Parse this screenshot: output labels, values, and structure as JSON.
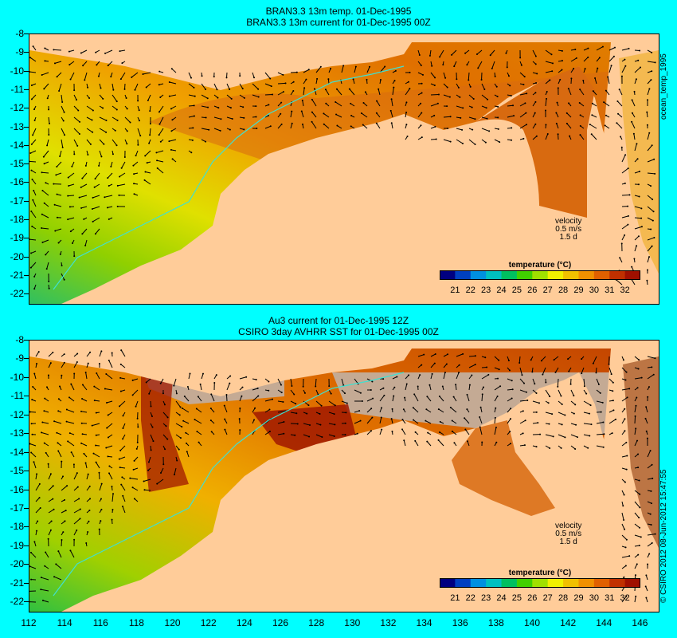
{
  "top_panel": {
    "title_line1": "BRAN3.3 13m temp. 01-Dec-1995",
    "title_line2": "BRAN3.3 13m current for 01-Dec-1995 00Z",
    "side_label": "ocean_temp_1995"
  },
  "bottom_panel": {
    "title_line1": "Au3 current for 01-Dec-1995 12Z",
    "title_line2": "CSIRO 3day AVHRR SST for 01-Dec-1995 00Z",
    "side_label": "© CSIRO 2012  08-Jun-2012 15:47:55"
  },
  "velocity_key": {
    "label": "velocity",
    "speed": "0.5 m/s",
    "duration": "1.5 d"
  },
  "legend": {
    "title": "temperature (°C)",
    "ticks": [
      "21",
      "22",
      "23",
      "24",
      "25",
      "26",
      "27",
      "28",
      "29",
      "30",
      "31",
      "32"
    ],
    "colors": [
      "#000080",
      "#0040c0",
      "#0090e0",
      "#00c0c0",
      "#00c060",
      "#40d000",
      "#a0e000",
      "#f0f000",
      "#f0c000",
      "#f09000",
      "#e06000",
      "#c03000",
      "#a01000"
    ]
  },
  "axes": {
    "lat_labels": [
      "-8",
      "-9",
      "-10",
      "-11",
      "-12",
      "-13",
      "-14",
      "-15",
      "-16",
      "-17",
      "-18",
      "-19",
      "-20",
      "-21",
      "-22"
    ],
    "lon_labels": [
      "112",
      "114",
      "116",
      "118",
      "120",
      "122",
      "124",
      "126",
      "128",
      "130",
      "132",
      "134",
      "136",
      "138",
      "140",
      "142",
      "144",
      "146"
    ],
    "lat_range": [
      -8,
      -22.5
    ],
    "lon_range": [
      112,
      147
    ]
  },
  "colors": {
    "land": "#ffcc99",
    "cloud": "#c4aa94",
    "background": "#00ffff",
    "contour": "#40e0d0"
  }
}
